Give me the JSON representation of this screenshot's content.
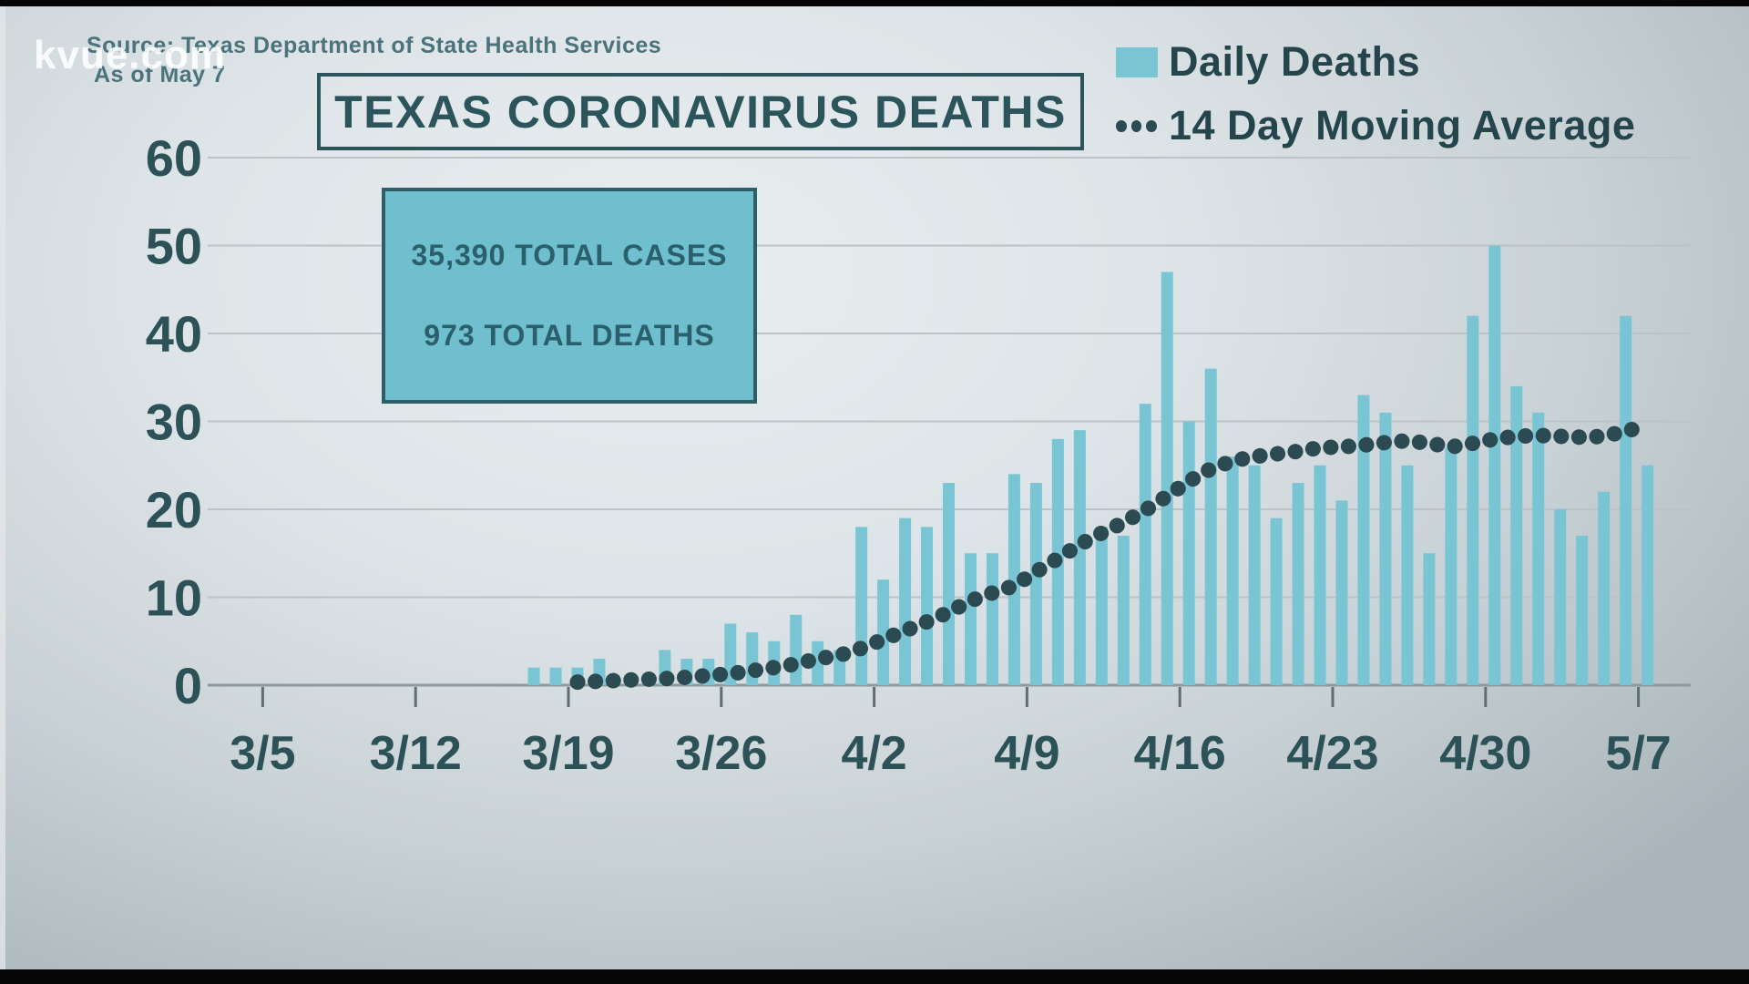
{
  "page": {
    "watermark": "kvue.com",
    "source_line1": "Source: Texas Department of State Health Services",
    "source_line2": "As of May 7",
    "title": "TEXAS CORONAVIRUS DEATHS"
  },
  "stats_box": {
    "line1": "35,390 TOTAL CASES",
    "line2": "973 TOTAL DEATHS"
  },
  "legend": {
    "daily_label": "Daily Deaths",
    "ma_label": "14 Day Moving Average"
  },
  "colors": {
    "bar_fill": "#79c5d4",
    "ma_dot": "#2b4a52",
    "axis_text": "#2c5156",
    "gridline": "#bcc3c6",
    "baseline": "#8e999d",
    "tick": "#5f6e73",
    "stats_box_fill": "#6fbfce",
    "stats_box_border": "#2e5f68",
    "title_teal": "#2c545b",
    "legend_text": "#24454c"
  },
  "chart_data": {
    "type": "bar",
    "title": "TEXAS CORONAVIRUS DEATHS",
    "xlabel": "",
    "ylabel": "",
    "ylim": [
      0,
      60
    ],
    "yticks": [
      0,
      10,
      20,
      30,
      40,
      50,
      60
    ],
    "grid": true,
    "legend_position": "top-right",
    "x_tick_labels": [
      "3/5",
      "3/12",
      "3/19",
      "3/26",
      "4/2",
      "4/9",
      "4/16",
      "4/23",
      "4/30",
      "5/7"
    ],
    "dates": [
      "3/17",
      "3/18",
      "3/19",
      "3/20",
      "3/21",
      "3/22",
      "3/23",
      "3/24",
      "3/25",
      "3/26",
      "3/27",
      "3/28",
      "3/29",
      "3/30",
      "3/31",
      "4/1",
      "4/2",
      "4/3",
      "4/4",
      "4/5",
      "4/6",
      "4/7",
      "4/8",
      "4/9",
      "4/10",
      "4/11",
      "4/12",
      "4/13",
      "4/14",
      "4/15",
      "4/16",
      "4/17",
      "4/18",
      "4/19",
      "4/20",
      "4/21",
      "4/22",
      "4/23",
      "4/24",
      "4/25",
      "4/26",
      "4/27",
      "4/28",
      "4/29",
      "4/30",
      "5/1",
      "5/2",
      "5/3",
      "5/4",
      "5/5",
      "5/6",
      "5/7"
    ],
    "series": [
      {
        "name": "Daily Deaths",
        "type": "bar",
        "values": [
          2,
          2,
          2,
          3,
          0,
          0,
          4,
          3,
          3,
          7,
          6,
          5,
          8,
          5,
          4,
          18,
          12,
          19,
          18,
          23,
          15,
          15,
          24,
          23,
          28,
          29,
          18,
          17,
          32,
          47,
          30,
          36,
          26,
          25,
          19,
          23,
          25,
          21,
          33,
          31,
          25,
          15,
          27,
          42,
          50,
          34,
          31,
          20,
          17,
          22,
          42,
          25
        ]
      },
      {
        "name": "14 Day Moving Average",
        "type": "dotted_line",
        "values": [
          null,
          null,
          0.35,
          0.45,
          0.55,
          0.65,
          0.75,
          0.9,
          1.1,
          1.3,
          1.65,
          2.0,
          2.4,
          3.0,
          3.4,
          4.2,
          5.2,
          6.2,
          7.2,
          8.3,
          9.6,
          10.5,
          11.3,
          12.9,
          14.4,
          16.0,
          17.3,
          18.5,
          19.9,
          21.5,
          23.2,
          24.6,
          25.5,
          26.0,
          26.3,
          26.6,
          27.0,
          27.1,
          27.3,
          27.6,
          27.8,
          27.5,
          27.1,
          27.5,
          28.0,
          28.3,
          28.4,
          28.3,
          28.2,
          28.3,
          28.9,
          29.5
        ]
      }
    ]
  }
}
